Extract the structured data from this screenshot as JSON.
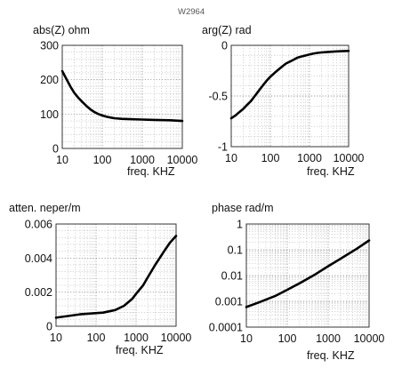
{
  "figure_code": "W2964",
  "chart_data": [
    {
      "type": "line",
      "title": "abs(Z) ohm",
      "xlabel": "freq.  KHZ",
      "x_scale": "log",
      "xlim": [
        10,
        10000
      ],
      "ylim": [
        0,
        300
      ],
      "x_ticks": [
        "10",
        "100",
        "1000",
        "10000"
      ],
      "y_ticks": [
        "0",
        "100",
        "200",
        "300"
      ],
      "grid": true,
      "series": [
        {
          "x": [
            10,
            13,
            16,
            20,
            25,
            32,
            40,
            50,
            63,
            80,
            100,
            130,
            160,
            200,
            300,
            500,
            1000,
            2000,
            5000,
            10000
          ],
          "y": [
            225,
            200,
            180,
            162,
            148,
            135,
            124,
            114,
            106,
            100,
            96,
            92,
            90,
            88,
            86,
            85,
            84,
            83,
            82,
            80
          ]
        }
      ]
    },
    {
      "type": "line",
      "title": "arg(Z)  rad",
      "xlabel": "freq.  KHZ",
      "x_scale": "log",
      "xlim": [
        10,
        10000
      ],
      "ylim": [
        -1,
        0
      ],
      "x_ticks": [
        "10",
        "100",
        "1000",
        "10000"
      ],
      "y_ticks": [
        "-1",
        "-0.5",
        "0"
      ],
      "grid": true,
      "series": [
        {
          "x": [
            10,
            13,
            16,
            20,
            25,
            32,
            40,
            50,
            63,
            80,
            100,
            130,
            160,
            200,
            250,
            320,
            400,
            500,
            630,
            800,
            1000,
            1300,
            1600,
            2000,
            3000,
            5000,
            10000
          ],
          "y": [
            -0.72,
            -0.69,
            -0.66,
            -0.63,
            -0.59,
            -0.55,
            -0.5,
            -0.45,
            -0.4,
            -0.35,
            -0.31,
            -0.27,
            -0.24,
            -0.21,
            -0.18,
            -0.16,
            -0.14,
            -0.12,
            -0.11,
            -0.1,
            -0.09,
            -0.08,
            -0.075,
            -0.07,
            -0.065,
            -0.06,
            -0.055
          ]
        }
      ]
    },
    {
      "type": "line",
      "title": "atten.  neper/m",
      "xlabel": "freq.  KHZ",
      "x_scale": "log",
      "xlim": [
        10,
        10000
      ],
      "ylim": [
        0,
        0.006
      ],
      "x_ticks": [
        "10",
        "100",
        "1000",
        "10000"
      ],
      "y_ticks": [
        "0",
        "0.002",
        "0.004",
        "0.006"
      ],
      "grid": true,
      "series": [
        {
          "x": [
            10,
            20,
            40,
            80,
            150,
            300,
            500,
            800,
            1000,
            1500,
            2000,
            3000,
            5000,
            7000,
            10000
          ],
          "y": [
            0.0005,
            0.0006,
            0.0007,
            0.00075,
            0.0008,
            0.00095,
            0.0012,
            0.0016,
            0.0019,
            0.0024,
            0.0029,
            0.0036,
            0.0044,
            0.0049,
            0.0053
          ]
        }
      ]
    },
    {
      "type": "line",
      "title": "phase  rad/m",
      "xlabel": "freq.  KHZ",
      "x_scale": "log",
      "y_scale": "log",
      "xlim": [
        10,
        10000
      ],
      "ylim": [
        0.0001,
        1
      ],
      "x_ticks": [
        "10",
        "100",
        "1000",
        "10000"
      ],
      "y_ticks": [
        "0.0001",
        "0.001",
        "0.01",
        "0.1",
        "1"
      ],
      "grid": true,
      "series": [
        {
          "x": [
            10,
            20,
            50,
            100,
            200,
            500,
            1000,
            2000,
            5000,
            10000
          ],
          "y": [
            0.0006,
            0.0009,
            0.0016,
            0.0028,
            0.005,
            0.0115,
            0.023,
            0.045,
            0.11,
            0.23
          ]
        }
      ]
    }
  ]
}
